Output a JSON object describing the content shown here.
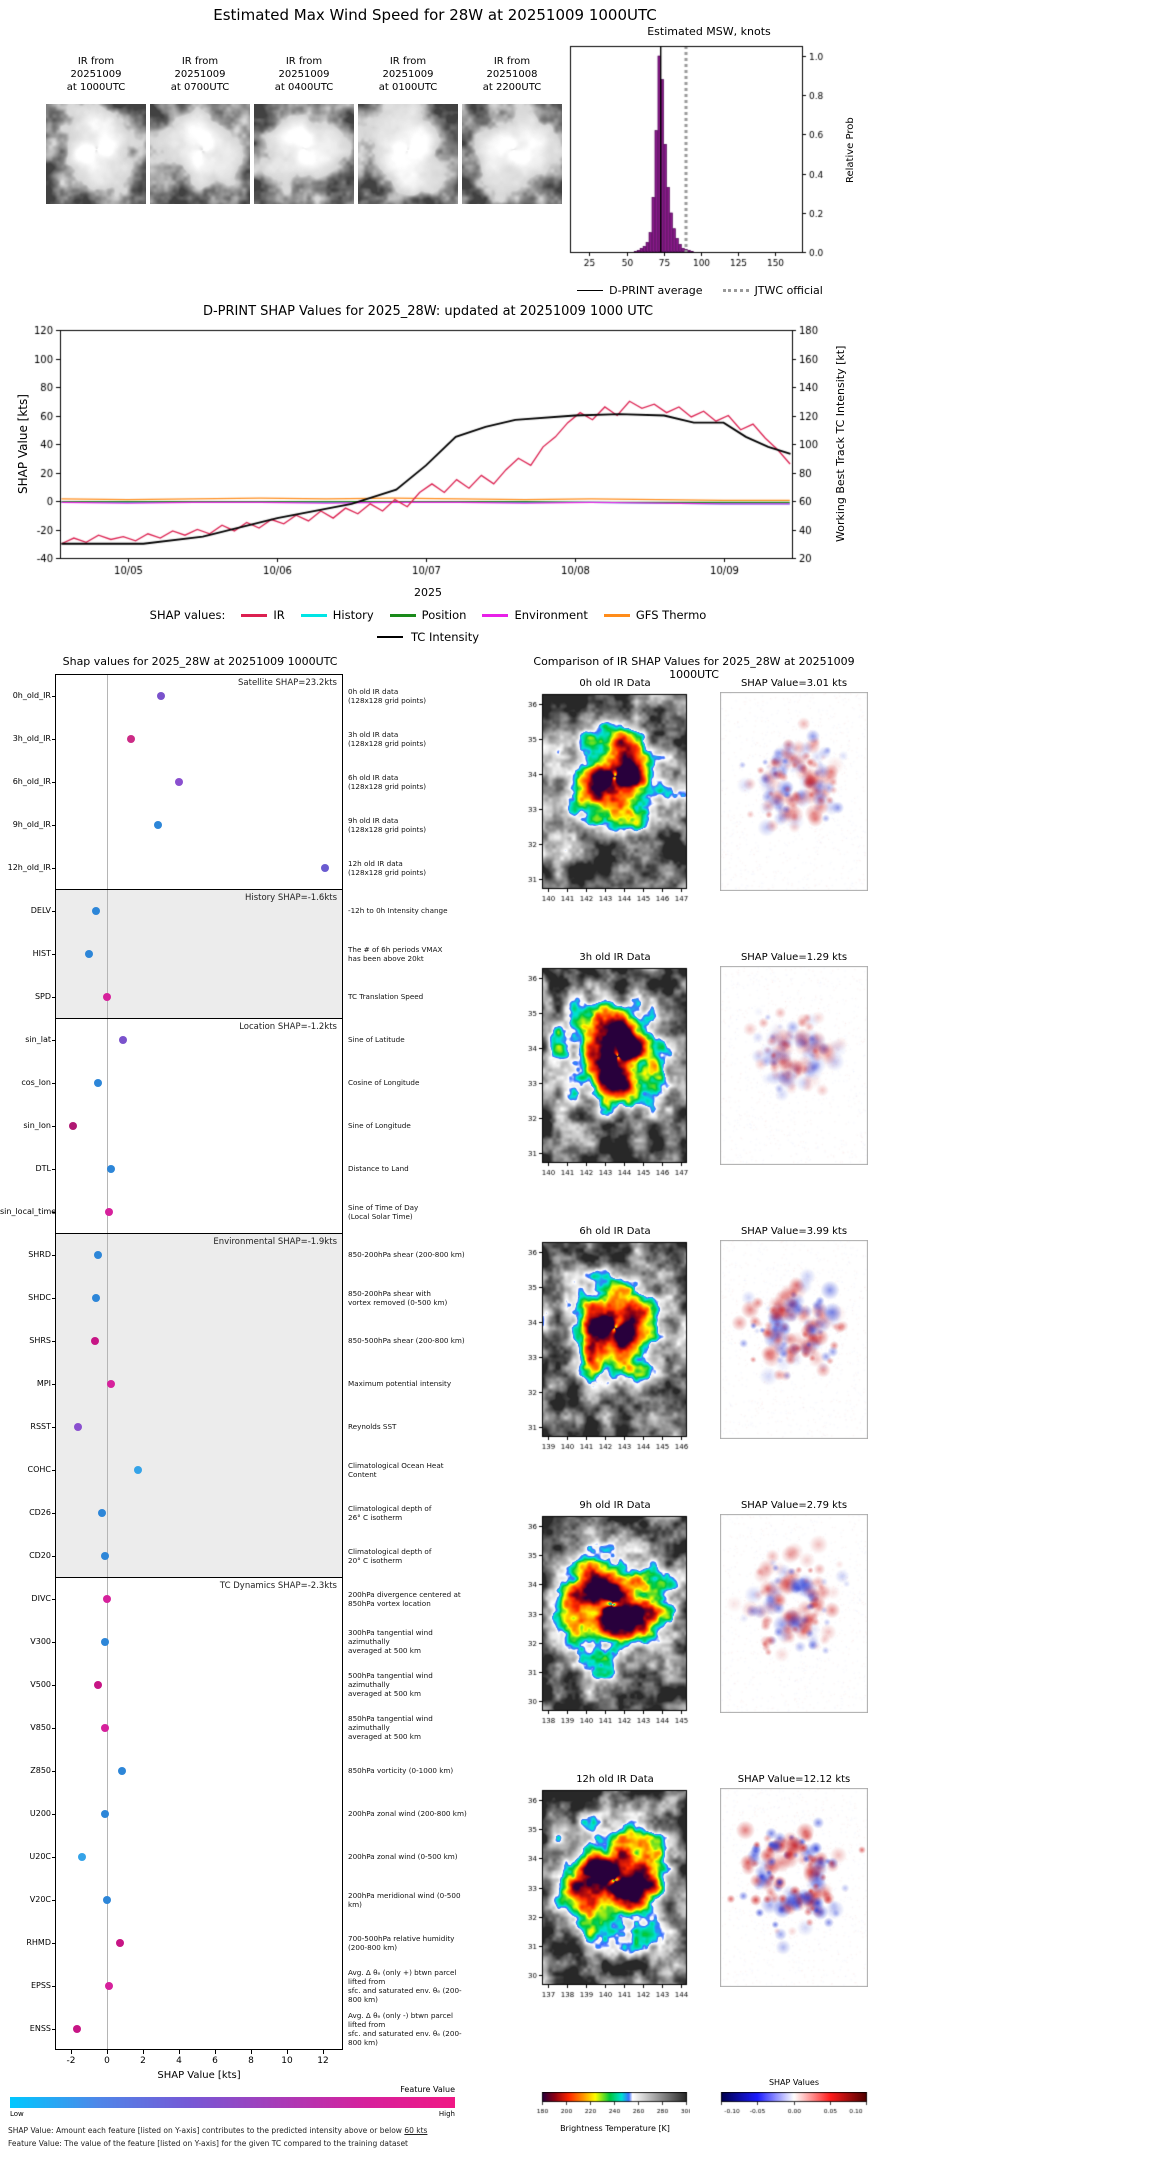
{
  "header": {
    "title": "Estimated Max Wind Speed for 28W at 20251009 1000UTC"
  },
  "thumbnails": [
    {
      "lines": [
        "IR from",
        "20251009",
        "at 1000UTC"
      ]
    },
    {
      "lines": [
        "IR from",
        "20251009",
        "at 0700UTC"
      ]
    },
    {
      "lines": [
        "IR from",
        "20251009",
        "at 0400UTC"
      ]
    },
    {
      "lines": [
        "IR from",
        "20251009",
        "at 0100UTC"
      ]
    },
    {
      "lines": [
        "IR from",
        "20251008",
        "at 2200UTC"
      ]
    }
  ],
  "chart_data": [
    {
      "id": "msw_histogram",
      "type": "bar",
      "title": "Estimated MSW, knots",
      "ylabel_right": "Relative Prob",
      "xlim": [
        12,
        168
      ],
      "ylim": [
        0,
        1.05
      ],
      "x_ticks": [
        25,
        50,
        75,
        100,
        125,
        150
      ],
      "y_ticks": [
        "0.0",
        "0.2",
        "0.4",
        "0.6",
        "0.8",
        "1.0"
      ],
      "bar_color": "#8a1a8a",
      "bin_width": 2,
      "bin_centers": [
        56,
        58,
        60,
        62,
        64,
        66,
        68,
        70,
        72,
        74,
        76,
        78,
        80,
        82,
        84,
        86,
        88,
        90,
        92,
        94
      ],
      "values": [
        0.005,
        0.01,
        0.02,
        0.03,
        0.05,
        0.1,
        0.28,
        0.62,
        1.0,
        0.88,
        0.55,
        0.33,
        0.2,
        0.12,
        0.07,
        0.04,
        0.02,
        0.015,
        0.01,
        0.005
      ],
      "dprint_average": 73,
      "jtwc_official": 90,
      "legend": [
        {
          "label": "D-PRINT average",
          "style": "solid",
          "color": "#000000"
        },
        {
          "label": "JTWC official",
          "style": "dotted",
          "color": "#999999"
        }
      ]
    },
    {
      "id": "shap_timeseries",
      "type": "line",
      "title": "D-PRINT SHAP Values for 2025_28W: updated at 20251009 1000 UTC",
      "ylabel_left": "SHAP Value [kts]",
      "ylabel_right": "Working Best Track TC Intensity [kt]",
      "xlabel": "2025",
      "legend_prefix": "SHAP values:",
      "xlim": [
        -0.46,
        4.46
      ],
      "ylim_left": [
        -40,
        120
      ],
      "yticks_left": [
        120,
        100,
        80,
        60,
        40,
        20,
        0,
        -20,
        -40
      ],
      "ylim_right": [
        20,
        180
      ],
      "yticks_right": [
        180,
        160,
        140,
        120,
        100,
        80,
        60,
        40,
        20
      ],
      "x_tick_pos": [
        0,
        1,
        2,
        3,
        4
      ],
      "x_tick_labels": [
        "10/05",
        "10/06",
        "10/07",
        "10/08",
        "10/09"
      ],
      "series": [
        {
          "name": "IR",
          "color": "#dc2050",
          "axis": "left",
          "width": 1.3,
          "x_start": -0.45,
          "x_step": 0.083,
          "y": [
            -30,
            -26,
            -29,
            -24,
            -27,
            -25,
            -28,
            -23,
            -26,
            -21,
            -24,
            -20,
            -23,
            -17,
            -21,
            -15,
            -19,
            -13,
            -16,
            -10,
            -14,
            -7,
            -12,
            -5,
            -9,
            -2,
            -7,
            1,
            -4,
            6,
            12,
            6,
            15,
            9,
            18,
            12,
            22,
            30,
            25,
            38,
            45,
            55,
            62,
            57,
            66,
            60,
            70,
            65,
            68,
            62,
            66,
            59,
            63,
            56,
            60,
            50,
            54,
            44,
            36,
            26
          ]
        },
        {
          "name": "History",
          "color": "#00e5e5",
          "axis": "left",
          "width": 1.2,
          "x_start": -0.45,
          "x_step": 0.445,
          "y": [
            -1,
            -1,
            -1,
            -1,
            -1,
            -1,
            -1,
            -1,
            -1,
            -1.5,
            -2,
            -2
          ]
        },
        {
          "name": "Position",
          "color": "#1a8a1a",
          "axis": "left",
          "width": 1.2,
          "x_start": -0.45,
          "x_step": 0.445,
          "y": [
            -0.5,
            -0.5,
            -0.5,
            -0.5,
            -0.5,
            -0.5,
            -0.5,
            -0.5,
            -1,
            -1,
            -1,
            -1
          ]
        },
        {
          "name": "Environment",
          "color": "#e820e8",
          "axis": "left",
          "width": 1.2,
          "x_start": -0.45,
          "x_step": 0.445,
          "y": [
            -1,
            -1.5,
            -1,
            -1,
            -1.5,
            -1,
            -1,
            -1.5,
            -1,
            -1.5,
            -2,
            -2
          ]
        },
        {
          "name": "GFS Thermo",
          "color": "#ff8c1a",
          "axis": "left",
          "width": 1.2,
          "x_start": -0.45,
          "x_step": 0.445,
          "y": [
            1.5,
            1,
            1.5,
            2,
            1.5,
            2,
            1.5,
            1,
            1.5,
            1,
            0.5,
            0.5
          ]
        },
        {
          "name": "TC Intensity",
          "color": "#000000",
          "axis": "right",
          "width": 1.8,
          "x": [
            -0.45,
            0.1,
            0.5,
            1.0,
            1.5,
            1.8,
            2.0,
            2.2,
            2.4,
            2.6,
            3.0,
            3.3,
            3.6,
            3.8,
            4.0,
            4.15,
            4.3,
            4.45
          ],
          "y": [
            30,
            30,
            35,
            48,
            58,
            68,
            85,
            105,
            112,
            117,
            120,
            121,
            120,
            115,
            115,
            105,
            98,
            93
          ]
        }
      ]
    },
    {
      "id": "shap_dotplot",
      "type": "scatter",
      "title": "Shap values for 2025_28W at 20251009 1000UTC",
      "xlabel": "SHAP Value [kts]",
      "x_ticks": [
        -2,
        0,
        2,
        4,
        6,
        8,
        10,
        12
      ],
      "xlim": [
        -2.9,
        13.1
      ],
      "groups": [
        {
          "header": "Satellite SHAP=23.2kts",
          "shaded": false,
          "rows": [
            {
              "feature": "0h_old_IR",
              "value": 3.0,
              "color": "#7a52cc",
              "desc": "0h old IR data\n(128x128 grid points)"
            },
            {
              "feature": "3h_old_IR",
              "value": 1.3,
              "color": "#cc2b86",
              "desc": "3h old IR data\n(128x128 grid points)"
            },
            {
              "feature": "6h_old_IR",
              "value": 4.0,
              "color": "#8a4fcf",
              "desc": "6h old IR data\n(128x128 grid points)"
            },
            {
              "feature": "9h_old_IR",
              "value": 2.8,
              "color": "#2d86d8",
              "desc": "9h old IR data\n(128x128 grid points)"
            },
            {
              "feature": "12h_old_IR",
              "value": 12.1,
              "color": "#6a5bd0",
              "desc": "12h old IR data\n(128x128 grid points)"
            }
          ]
        },
        {
          "header": "History SHAP=-1.6kts",
          "shaded": true,
          "rows": [
            {
              "feature": "DELV",
              "value": -0.6,
              "color": "#2d86d8",
              "desc": "-12h to 0h Intensity change"
            },
            {
              "feature": "HIST",
              "value": -1.0,
              "color": "#2d86d8",
              "desc": "The # of 6h periods VMAX\nhas been above 20kt"
            },
            {
              "feature": "SPD",
              "value": 0.0,
              "color": "#d6219c",
              "desc": "TC Translation Speed"
            }
          ]
        },
        {
          "header": "Location SHAP=-1.2kts",
          "shaded": false,
          "rows": [
            {
              "feature": "sin_lat",
              "value": 0.9,
              "color": "#7a52cc",
              "desc": "Sine of Latitude"
            },
            {
              "feature": "cos_lon",
              "value": -0.5,
              "color": "#2d86d8",
              "desc": "Cosine of Longitude"
            },
            {
              "feature": "sin_lon",
              "value": -1.9,
              "color": "#b01873",
              "desc": "Sine of Longitude"
            },
            {
              "feature": "DTL",
              "value": 0.2,
              "color": "#2d86d8",
              "desc": "Distance to Land"
            },
            {
              "feature": "sin_local_time",
              "value": 0.1,
              "color": "#d6219c",
              "desc": "Sine of Time of Day\n(Local Solar Time)"
            }
          ]
        },
        {
          "header": "Environmental SHAP=-1.9kts",
          "shaded": true,
          "rows": [
            {
              "feature": "SHRD",
              "value": -0.5,
              "color": "#2d86d8",
              "desc": "850-200hPa shear (200-800 km)"
            },
            {
              "feature": "SHDC",
              "value": -0.6,
              "color": "#2d86d8",
              "desc": "850-200hPa shear with\nvortex removed (0-500 km)"
            },
            {
              "feature": "SHRS",
              "value": -0.7,
              "color": "#c71585",
              "desc": "850-500hPa shear (200-800 km)"
            },
            {
              "feature": "MPI",
              "value": 0.2,
              "color": "#d6219c",
              "desc": "Maximum potential intensity"
            },
            {
              "feature": "RSST",
              "value": -1.6,
              "color": "#8a4fcf",
              "desc": "Reynolds SST"
            },
            {
              "feature": "COHC",
              "value": 1.7,
              "color": "#35a3e8",
              "desc": "Climatological Ocean Heat Content"
            },
            {
              "feature": "CD26",
              "value": -0.3,
              "color": "#2d86d8",
              "desc": "Climatological depth of\n26° C isotherm"
            },
            {
              "feature": "CD20",
              "value": -0.1,
              "color": "#2d86d8",
              "desc": "Climatological depth of\n20° C isotherm"
            }
          ]
        },
        {
          "header": "TC Dynamics SHAP=-2.3kts",
          "shaded": false,
          "rows": [
            {
              "feature": "DIVC",
              "value": 0.0,
              "color": "#d6219c",
              "desc": "200hPa divergence centered at\n850hPa vortex location"
            },
            {
              "feature": "V300",
              "value": -0.1,
              "color": "#2d86d8",
              "desc": "300hPa tangential wind azimuthally\naveraged at 500 km"
            },
            {
              "feature": "V500",
              "value": -0.5,
              "color": "#c71585",
              "desc": "500hPa tangential wind azimuthally\naveraged at 500 km"
            },
            {
              "feature": "V850",
              "value": -0.1,
              "color": "#d6219c",
              "desc": "850hPa tangential wind azimuthally\naveraged at 500 km"
            },
            {
              "feature": "Z850",
              "value": 0.8,
              "color": "#2d86d8",
              "desc": "850hPa vorticity (0-1000 km)"
            },
            {
              "feature": "U200",
              "value": -0.1,
              "color": "#2d86d8",
              "desc": "200hPa zonal wind (200-800 km)"
            },
            {
              "feature": "U20C",
              "value": -1.4,
              "color": "#35a3e8",
              "desc": "200hPa zonal wind (0-500 km)"
            },
            {
              "feature": "V20C",
              "value": 0.0,
              "color": "#2d86d8",
              "desc": "200hPa meridional wind (0-500 km)"
            },
            {
              "feature": "RHMD",
              "value": 0.7,
              "color": "#c71585",
              "desc": "700-500hPa relative humidity\n(200-800 km)"
            },
            {
              "feature": "EPSS",
              "value": 0.1,
              "color": "#d6219c",
              "desc": "Avg. Δ θₑ (only +) btwn parcel lifted from\nsfc. and saturated env. θₑ (200-800 km)"
            },
            {
              "feature": "ENSS",
              "value": -1.7,
              "color": "#c71585",
              "desc": "Avg. Δ θₑ (only -) btwn parcel lifted from\nsfc. and saturated env. θₑ (200-800 km)"
            }
          ]
        }
      ],
      "colorbar": {
        "title": "Feature Value",
        "low_label": "Low",
        "high_label": "High",
        "stops": [
          "#00c8ff",
          "#4f86e8",
          "#7559d6",
          "#a73cb8",
          "#d6219c",
          "#f01884"
        ]
      },
      "footnotes": [
        {
          "text": "SHAP Value: Amount each feature [listed on Y-axis] contributes to the predicted intensity above or below ",
          "underline": "60 kts"
        },
        {
          "text": "Feature Value: The value of the feature [listed on Y-axis] for the given TC compared to the training dataset",
          "underline": ""
        }
      ]
    },
    {
      "id": "ir_comparison",
      "type": "heatmap",
      "title": "Comparison of IR SHAP Values for 2025_28W at 20251009 1000UTC",
      "rows": [
        {
          "ir_title": "0h old IR Data",
          "shap_title": "SHAP Value=3.01 kts",
          "lat_ticks": [
            36,
            35,
            34,
            33,
            32,
            31
          ],
          "lon_ticks": [
            140,
            141,
            142,
            143,
            144,
            145,
            146,
            147
          ]
        },
        {
          "ir_title": "3h old IR Data",
          "shap_title": "SHAP Value=1.29 kts",
          "lat_ticks": [
            36,
            35,
            34,
            33,
            32,
            31
          ],
          "lon_ticks": [
            140,
            141,
            142,
            143,
            144,
            145,
            146,
            147
          ]
        },
        {
          "ir_title": "6h old IR Data",
          "shap_title": "SHAP Value=3.99 kts",
          "lat_ticks": [
            36,
            35,
            34,
            33,
            32,
            31
          ],
          "lon_ticks": [
            139,
            140,
            141,
            142,
            143,
            144,
            145,
            146
          ]
        },
        {
          "ir_title": "9h old IR Data",
          "shap_title": "SHAP Value=2.79 kts",
          "lat_ticks": [
            36,
            35,
            34,
            33,
            32,
            31,
            30
          ],
          "lon_ticks": [
            138,
            139,
            140,
            141,
            142,
            143,
            144,
            145
          ]
        },
        {
          "ir_title": "12h old IR Data",
          "shap_title": "SHAP Value=12.12 kts",
          "lat_ticks": [
            36,
            35,
            34,
            33,
            32,
            31,
            30
          ],
          "lon_ticks": [
            137,
            138,
            139,
            140,
            141,
            142,
            143,
            144
          ]
        }
      ],
      "bt_colorbar": {
        "label": "Brightness Temperature [K]",
        "ticks": [
          180,
          200,
          220,
          240,
          260,
          280,
          300
        ]
      },
      "shap_colorbar": {
        "label": "SHAP Values",
        "ticks": [
          "-0.10",
          "-0.05",
          "0.00",
          "0.05",
          "0.10"
        ]
      }
    }
  ]
}
